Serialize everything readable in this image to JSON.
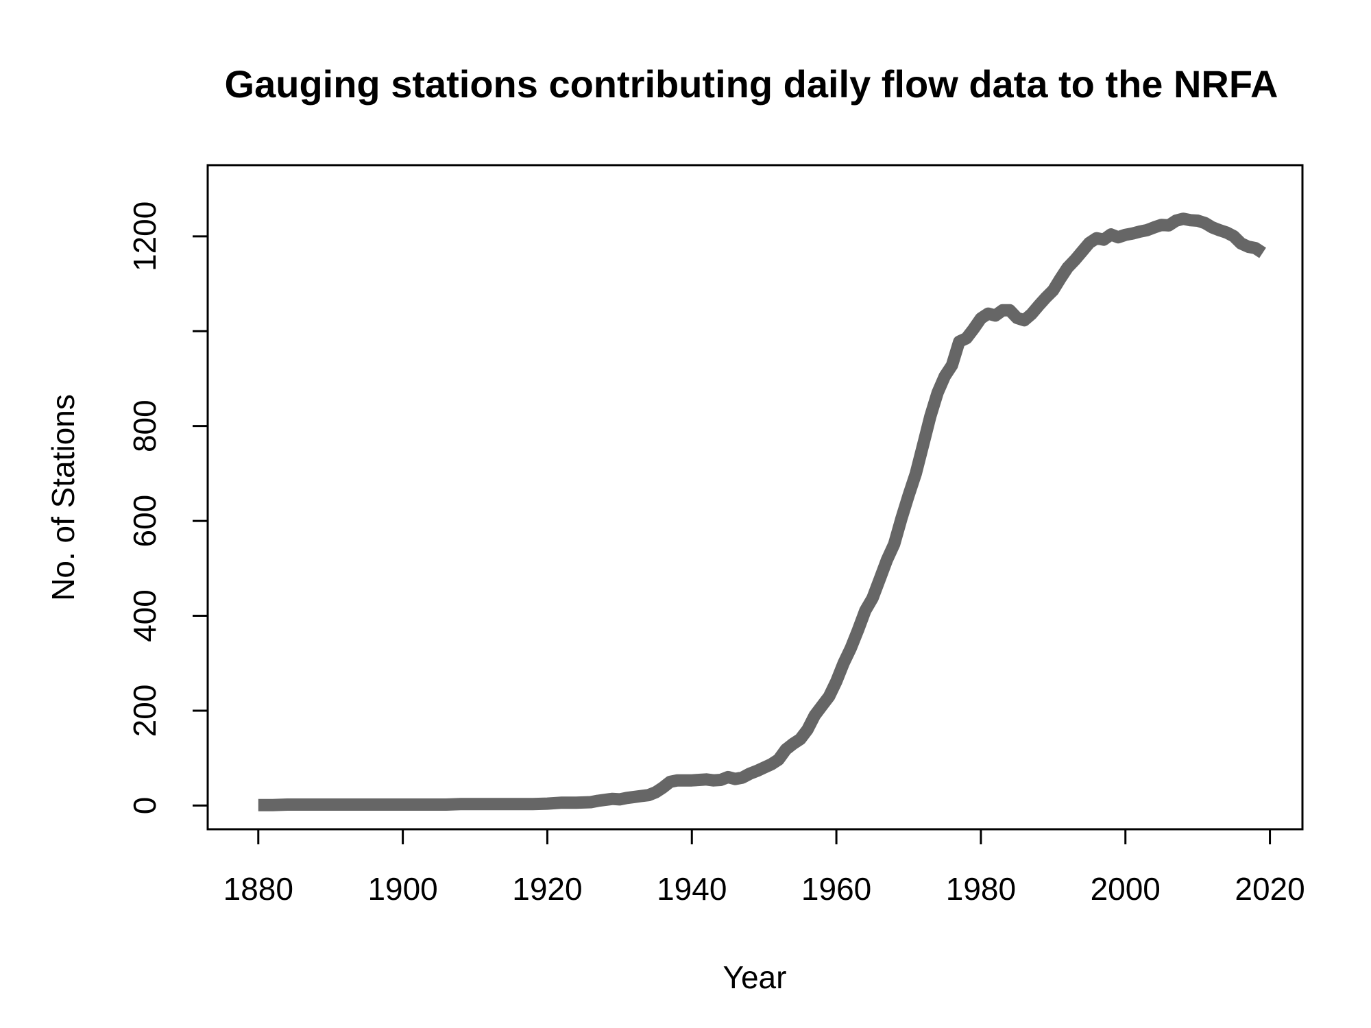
{
  "chart_data": {
    "type": "line",
    "title": "Gauging stations contributing daily flow data to the NRFA",
    "xlabel": "Year",
    "ylabel": "No. of Stations",
    "xlim": [
      1873,
      2024.5
    ],
    "ylim": [
      -50,
      1350
    ],
    "x_ticks": [
      {
        "value": 1880,
        "label": "1880"
      },
      {
        "value": 1900,
        "label": "1900"
      },
      {
        "value": 1920,
        "label": "1920"
      },
      {
        "value": 1940,
        "label": "1940"
      },
      {
        "value": 1960,
        "label": "1960"
      },
      {
        "value": 1980,
        "label": "1980"
      },
      {
        "value": 2000,
        "label": "2000"
      },
      {
        "value": 2020,
        "label": "2020"
      }
    ],
    "y_ticks": [
      {
        "value": 0,
        "label": "0"
      },
      {
        "value": 200,
        "label": "200"
      },
      {
        "value": 400,
        "label": "400"
      },
      {
        "value": 600,
        "label": "600"
      },
      {
        "value": 800,
        "label": "800"
      },
      {
        "value": 1000,
        "label": ""
      },
      {
        "value": 1200,
        "label": "1200"
      }
    ],
    "grid": false,
    "legend": "none",
    "series": [
      {
        "color": "#666666",
        "x": [
          1880,
          1882,
          1884,
          1886,
          1888,
          1890,
          1892,
          1894,
          1896,
          1898,
          1900,
          1902,
          1904,
          1906,
          1908,
          1910,
          1912,
          1914,
          1916,
          1918,
          1920,
          1922,
          1924,
          1926,
          1927,
          1928,
          1929,
          1930,
          1931,
          1932,
          1933,
          1934,
          1935,
          1936,
          1937,
          1938,
          1939,
          1940,
          1941,
          1942,
          1943,
          1944,
          1945,
          1946,
          1947,
          1948,
          1949,
          1950,
          1951,
          1952,
          1953,
          1954,
          1955,
          1956,
          1957,
          1958,
          1959,
          1960,
          1961,
          1962,
          1963,
          1964,
          1965,
          1966,
          1967,
          1968,
          1969,
          1970,
          1971,
          1972,
          1973,
          1974,
          1975,
          1976,
          1977,
          1978,
          1979,
          1980,
          1981,
          1982,
          1983,
          1984,
          1985,
          1986,
          1987,
          1988,
          1989,
          1990,
          1991,
          1992,
          1993,
          1994,
          1995,
          1996,
          1997,
          1998,
          1999,
          2000,
          2001,
          2002,
          2003,
          2004,
          2005,
          2006,
          2007,
          2008,
          2009,
          2010,
          2011,
          2012,
          2013,
          2014,
          2015,
          2016,
          2017,
          2018,
          2019
        ],
        "y": [
          1,
          1,
          2,
          2,
          2,
          2,
          2,
          2,
          2,
          2,
          2,
          2,
          2,
          2,
          3,
          3,
          3,
          3,
          3,
          3,
          4,
          6,
          6,
          7,
          10,
          12,
          14,
          13,
          16,
          18,
          20,
          22,
          28,
          38,
          50,
          53,
          53,
          53,
          54,
          55,
          53,
          54,
          60,
          56,
          59,
          67,
          73,
          80,
          87,
          97,
          118,
          130,
          140,
          160,
          190,
          210,
          230,
          262,
          300,
          332,
          370,
          411,
          437,
          477,
          518,
          551,
          605,
          654,
          700,
          760,
          820,
          870,
          905,
          928,
          978,
          985,
          1005,
          1027,
          1037,
          1033,
          1044,
          1044,
          1028,
          1023,
          1036,
          1054,
          1071,
          1086,
          1111,
          1134,
          1150,
          1168,
          1186,
          1196,
          1193,
          1204,
          1198,
          1203,
          1206,
          1210,
          1213,
          1219,
          1224,
          1223,
          1233,
          1237,
          1234,
          1233,
          1228,
          1219,
          1213,
          1208,
          1200,
          1185,
          1178,
          1175,
          1165
        ]
      }
    ]
  }
}
